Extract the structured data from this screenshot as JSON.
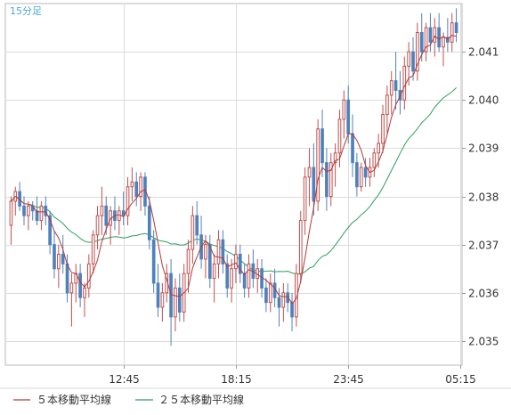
{
  "timeframe_label": "15分足",
  "chart_data": {
    "type": "candlestick",
    "ylim": [
      2.0345,
      2.042
    ],
    "y_ticks": [
      2.035,
      2.036,
      2.037,
      2.038,
      2.039,
      2.04,
      2.041
    ],
    "y_tick_labels": [
      "2.035",
      "2.036",
      "2.037",
      "2.038",
      "2.039",
      "2.040",
      "2.041"
    ],
    "x_tick_labels": [
      {
        "index": 26,
        "label": "12:45"
      },
      {
        "index": 52,
        "label": "18:15"
      },
      {
        "index": 78,
        "label": "23:45"
      },
      {
        "index": 104,
        "label": "05:15"
      }
    ],
    "grid": true,
    "legend_position": "bottom-left",
    "colors": {
      "up": "#c0504d",
      "down": "#4f81bd",
      "ma5": "#b23a3a",
      "ma25": "#2f9e5a",
      "accent": "#4aa8d8"
    },
    "series": [
      {
        "name": "５本移動平均線",
        "type": "ma",
        "period": 5
      },
      {
        "name": "２５本移動平均線",
        "type": "ma",
        "period": 25
      }
    ],
    "ohlc": [
      [
        2.0374,
        2.038,
        2.037,
        2.0379
      ],
      [
        2.0379,
        2.0382,
        2.0376,
        2.0381
      ],
      [
        2.0381,
        2.0383,
        2.0377,
        2.0378
      ],
      [
        2.0378,
        2.038,
        2.0374,
        2.0376
      ],
      [
        2.0376,
        2.0379,
        2.0373,
        2.0378
      ],
      [
        2.0378,
        2.0379,
        2.0375,
        2.0377
      ],
      [
        2.0377,
        2.038,
        2.0374,
        2.0375
      ],
      [
        2.0375,
        2.0379,
        2.0373,
        2.0378
      ],
      [
        2.0378,
        2.038,
        2.0374,
        2.0376
      ],
      [
        2.0376,
        2.0377,
        2.0368,
        2.037
      ],
      [
        2.037,
        2.0373,
        2.0363,
        2.0365
      ],
      [
        2.0365,
        2.037,
        2.0361,
        2.0368
      ],
      [
        2.0368,
        2.0372,
        2.0364,
        2.0366
      ],
      [
        2.0366,
        2.0368,
        2.0358,
        2.036
      ],
      [
        2.036,
        2.0364,
        2.0353,
        2.0362
      ],
      [
        2.0362,
        2.0366,
        2.0358,
        2.0364
      ],
      [
        2.0364,
        2.0366,
        2.0357,
        2.0359
      ],
      [
        2.0359,
        2.0362,
        2.0355,
        2.0361
      ],
      [
        2.0361,
        2.0368,
        2.0359,
        2.0366
      ],
      [
        2.0366,
        2.0373,
        2.0364,
        2.0372
      ],
      [
        2.0372,
        2.0378,
        2.0369,
        2.0376
      ],
      [
        2.0376,
        2.0382,
        2.0372,
        2.0378
      ],
      [
        2.0378,
        2.038,
        2.0372,
        2.0374
      ],
      [
        2.0374,
        2.0378,
        2.037,
        2.0377
      ],
      [
        2.0377,
        2.038,
        2.0373,
        2.0375
      ],
      [
        2.0375,
        2.0378,
        2.0372,
        2.0377
      ],
      [
        2.0377,
        2.0381,
        2.0374,
        2.0376
      ],
      [
        2.0376,
        2.0384,
        2.0374,
        2.0382
      ],
      [
        2.0382,
        2.0386,
        2.0379,
        2.0383
      ],
      [
        2.0383,
        2.0385,
        2.0378,
        2.038
      ],
      [
        2.038,
        2.0385,
        2.0377,
        2.0384
      ],
      [
        2.0384,
        2.0385,
        2.0376,
        2.0378
      ],
      [
        2.0378,
        2.038,
        2.0369,
        2.0371
      ],
      [
        2.0371,
        2.0373,
        2.036,
        2.0362
      ],
      [
        2.0362,
        2.0366,
        2.0355,
        2.0357
      ],
      [
        2.0357,
        2.0362,
        2.0354,
        2.036
      ],
      [
        2.036,
        2.0366,
        2.0358,
        2.0364
      ],
      [
        2.0364,
        2.0367,
        2.0349,
        2.0355
      ],
      [
        2.0355,
        2.0363,
        2.0352,
        2.0361
      ],
      [
        2.0361,
        2.0364,
        2.0354,
        2.0356
      ],
      [
        2.0356,
        2.0366,
        2.0354,
        2.0364
      ],
      [
        2.0364,
        2.0371,
        2.036,
        2.0369
      ],
      [
        2.0369,
        2.0378,
        2.0366,
        2.0376
      ],
      [
        2.0376,
        2.0379,
        2.037,
        2.0372
      ],
      [
        2.0372,
        2.0376,
        2.0365,
        2.0367
      ],
      [
        2.0367,
        2.0372,
        2.0363,
        2.037
      ],
      [
        2.037,
        2.0372,
        2.0361,
        2.0363
      ],
      [
        2.0363,
        2.0368,
        2.0358,
        2.0366
      ],
      [
        2.0366,
        2.0373,
        2.0363,
        2.0371
      ],
      [
        2.0371,
        2.0373,
        2.0364,
        2.0366
      ],
      [
        2.0366,
        2.0368,
        2.0359,
        2.0361
      ],
      [
        2.0361,
        2.0367,
        2.0358,
        2.0365
      ],
      [
        2.0365,
        2.037,
        2.0362,
        2.0368
      ],
      [
        2.0368,
        2.037,
        2.0362,
        2.0364
      ],
      [
        2.0364,
        2.0366,
        2.0359,
        2.0361
      ],
      [
        2.0361,
        2.0368,
        2.0359,
        2.0366
      ],
      [
        2.0366,
        2.0369,
        2.0361,
        2.0363
      ],
      [
        2.0363,
        2.0367,
        2.036,
        2.0365
      ],
      [
        2.0365,
        2.0367,
        2.0359,
        2.0361
      ],
      [
        2.0361,
        2.0363,
        2.0356,
        2.0358
      ],
      [
        2.0358,
        2.0364,
        2.0356,
        2.0362
      ],
      [
        2.0362,
        2.0365,
        2.0357,
        2.0359
      ],
      [
        2.0359,
        2.0361,
        2.0353,
        2.0357
      ],
      [
        2.0357,
        2.0362,
        2.0354,
        2.036
      ],
      [
        2.036,
        2.0362,
        2.0356,
        2.0358
      ],
      [
        2.0358,
        2.036,
        2.0352,
        2.0355
      ],
      [
        2.0355,
        2.0366,
        2.0353,
        2.0364
      ],
      [
        2.0364,
        2.0377,
        2.0362,
        2.0375
      ],
      [
        2.0375,
        2.0386,
        2.0372,
        2.0384
      ],
      [
        2.0384,
        2.039,
        2.0378,
        2.0386
      ],
      [
        2.0386,
        2.0391,
        2.0376,
        2.0379
      ],
      [
        2.0379,
        2.0396,
        2.0377,
        2.0394
      ],
      [
        2.0394,
        2.0398,
        2.0384,
        2.0387
      ],
      [
        2.0387,
        2.039,
        2.0377,
        2.038
      ],
      [
        2.038,
        2.0389,
        2.0378,
        2.0387
      ],
      [
        2.0387,
        2.0391,
        2.0382,
        2.0389
      ],
      [
        2.0389,
        2.0398,
        2.0386,
        2.0396
      ],
      [
        2.0396,
        2.0402,
        2.0392,
        2.04
      ],
      [
        2.04,
        2.0403,
        2.0391,
        2.0393
      ],
      [
        2.0393,
        2.0397,
        2.0384,
        2.0387
      ],
      [
        2.0387,
        2.0389,
        2.038,
        2.0382
      ],
      [
        2.0382,
        2.0387,
        2.0381,
        2.0386
      ],
      [
        2.0386,
        2.0388,
        2.0382,
        2.0384
      ],
      [
        2.0384,
        2.0388,
        2.0382,
        2.0386
      ],
      [
        2.0386,
        2.039,
        2.0384,
        2.0389
      ],
      [
        2.0389,
        2.0393,
        2.0386,
        2.0391
      ],
      [
        2.0391,
        2.0399,
        2.0389,
        2.0397
      ],
      [
        2.0397,
        2.0403,
        2.0393,
        2.0401
      ],
      [
        2.0401,
        2.0406,
        2.0397,
        2.0404
      ],
      [
        2.0404,
        2.041,
        2.0398,
        2.0402
      ],
      [
        2.0402,
        2.0406,
        2.0397,
        2.04
      ],
      [
        2.04,
        2.0409,
        2.0398,
        2.0407
      ],
      [
        2.0407,
        2.0412,
        2.0403,
        2.041
      ],
      [
        2.041,
        2.0413,
        2.0404,
        2.0406
      ],
      [
        2.0406,
        2.0416,
        2.0404,
        2.0414
      ],
      [
        2.0414,
        2.0418,
        2.0408,
        2.041
      ],
      [
        2.041,
        2.0416,
        2.0408,
        2.0415
      ],
      [
        2.0415,
        2.0418,
        2.041,
        2.0412
      ],
      [
        2.0412,
        2.0417,
        2.0409,
        2.0415
      ],
      [
        2.0415,
        2.0418,
        2.041,
        2.0411
      ],
      [
        2.0411,
        2.0414,
        2.0407,
        2.0413
      ],
      [
        2.0413,
        2.0417,
        2.041,
        2.0412
      ],
      [
        2.0412,
        2.0418,
        2.041,
        2.0416
      ],
      [
        2.0416,
        2.0419,
        2.0412,
        2.0414
      ]
    ]
  }
}
